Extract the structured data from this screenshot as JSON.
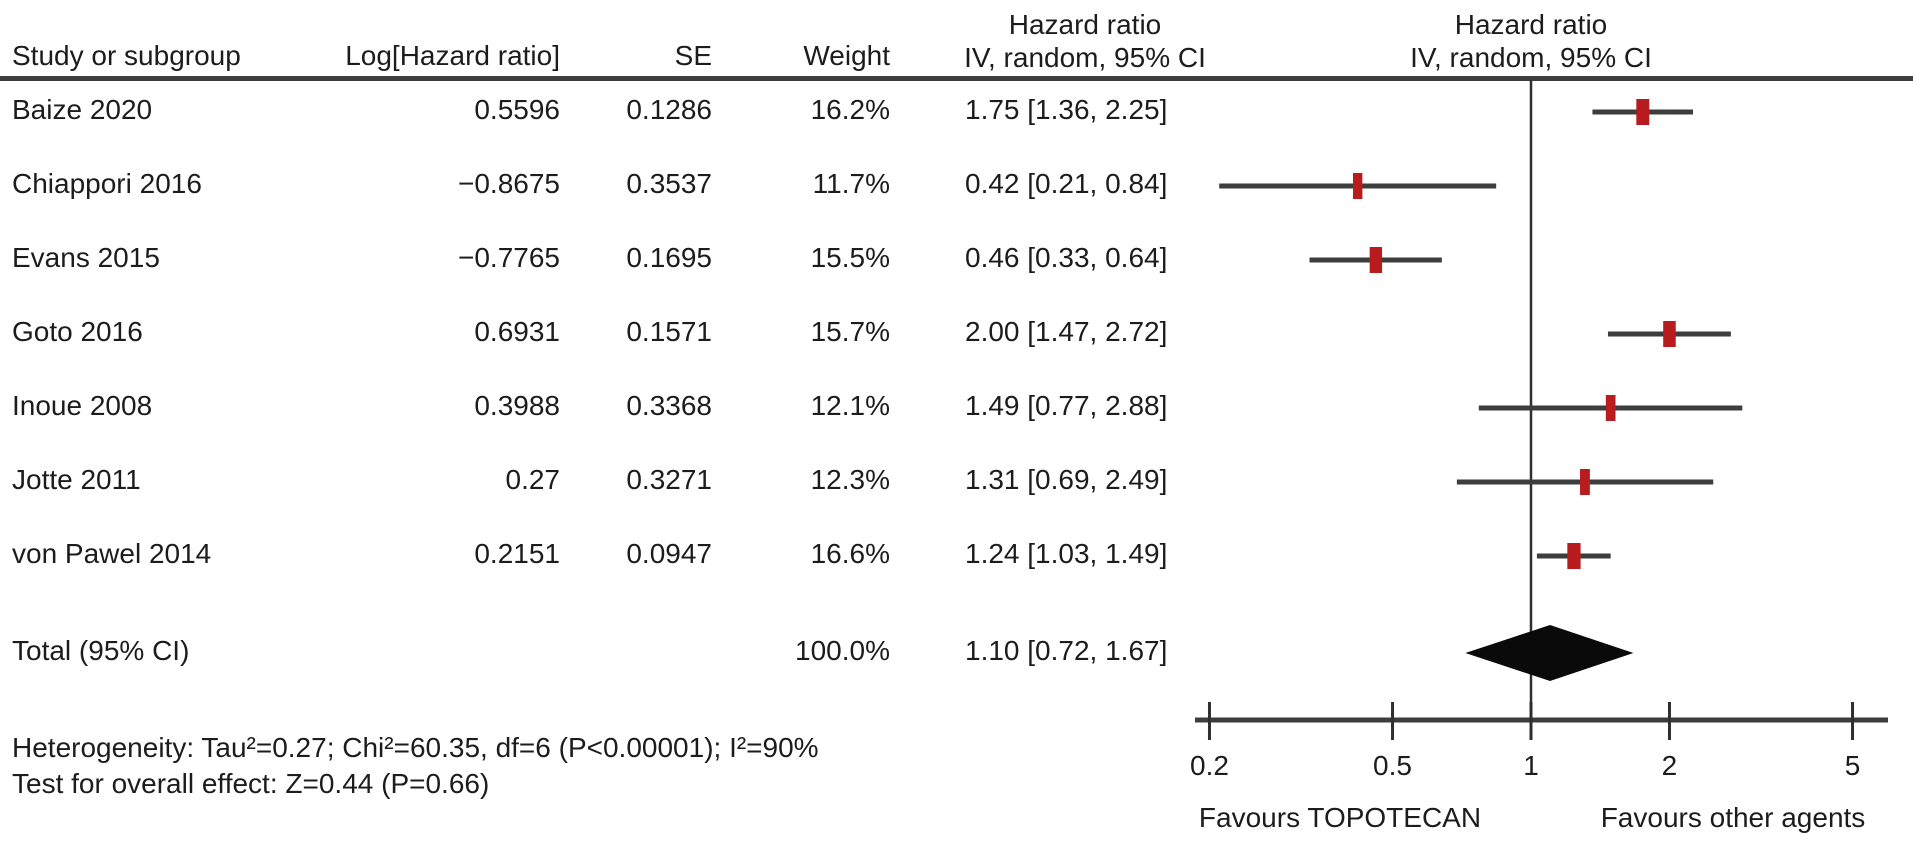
{
  "table": {
    "headers": {
      "study": "Study or subgroup",
      "log_hr": "Log[Hazard ratio]",
      "se": "SE",
      "weight": "Weight",
      "hr_col_line1": "Hazard ratio",
      "hr_col_line2": "IV, random, 95% CI",
      "plot_col_line1": "Hazard ratio",
      "plot_col_line2": "IV, random, 95% CI"
    },
    "rows": [
      {
        "study": "Baize 2020",
        "log_hr": "0.5596",
        "se": "0.1286",
        "weight": "16.2%",
        "hr_ci": "1.75 [1.36, 2.25]"
      },
      {
        "study": "Chiappori 2016",
        "log_hr": "−0.8675",
        "se": "0.3537",
        "weight": "11.7%",
        "hr_ci": "0.42 [0.21, 0.84]"
      },
      {
        "study": "Evans 2015",
        "log_hr": "−0.7765",
        "se": "0.1695",
        "weight": "15.5%",
        "hr_ci": "0.46 [0.33, 0.64]"
      },
      {
        "study": "Goto 2016",
        "log_hr": "0.6931",
        "se": "0.1571",
        "weight": "15.7%",
        "hr_ci": "2.00 [1.47, 2.72]"
      },
      {
        "study": "Inoue 2008",
        "log_hr": "0.3988",
        "se": "0.3368",
        "weight": "12.1%",
        "hr_ci": "1.49 [0.77, 2.88]"
      },
      {
        "study": "Jotte 2011",
        "log_hr": "0.27",
        "se": "0.3271",
        "weight": "12.3%",
        "hr_ci": "1.31 [0.69, 2.49]"
      },
      {
        "study": "von Pawel 2014",
        "log_hr": "0.2151",
        "se": "0.0947",
        "weight": "16.6%",
        "hr_ci": "1.24 [1.03, 1.49]"
      }
    ],
    "total": {
      "label": "Total (95% CI)",
      "weight": "100.0%",
      "hr_ci": "1.10 [0.72, 1.67]"
    }
  },
  "footer": {
    "heterogeneity": "Heterogeneity: Tau²=0.27; Chi²=60.35, df=6 (P<0.00001); I²=90%",
    "overall_effect": "Test for overall effect: Z=0.44 (P=0.66)"
  },
  "chart_data": {
    "type": "forest",
    "scale": "log10",
    "axis_ticks": [
      "0.2",
      "0.5",
      "1",
      "2",
      "5"
    ],
    "axis_range": [
      0.2,
      5
    ],
    "no_effect_line": 1,
    "favours_left": "Favours TOPOTECAN",
    "favours_right": "Favours other agents",
    "effect_label": "Hazard ratio",
    "model": "IV, random, 95% CI",
    "studies": [
      {
        "name": "Baize 2020",
        "hr": 1.75,
        "low": 1.36,
        "high": 2.25,
        "weight": 16.2
      },
      {
        "name": "Chiappori 2016",
        "hr": 0.42,
        "low": 0.21,
        "high": 0.84,
        "weight": 11.7
      },
      {
        "name": "Evans 2015",
        "hr": 0.46,
        "low": 0.33,
        "high": 0.64,
        "weight": 15.5
      },
      {
        "name": "Goto 2016",
        "hr": 2.0,
        "low": 1.47,
        "high": 2.72,
        "weight": 15.7
      },
      {
        "name": "Inoue 2008",
        "hr": 1.49,
        "low": 0.77,
        "high": 2.88,
        "weight": 12.1
      },
      {
        "name": "Jotte 2011",
        "hr": 1.31,
        "low": 0.69,
        "high": 2.49,
        "weight": 12.3
      },
      {
        "name": "von Pawel 2014",
        "hr": 1.24,
        "low": 1.03,
        "high": 1.49,
        "weight": 16.6
      }
    ],
    "total": {
      "hr": 1.1,
      "low": 0.72,
      "high": 1.67,
      "weight": 100.0
    }
  },
  "colors": {
    "marker": "#b91c1f",
    "ci_line": "#3d3d3d",
    "axis": "#3d3d3d",
    "no_effect": "#2f2f2f",
    "diamond": "#0a0a0a",
    "text": "#1c1c1c",
    "rule": "#3f3f3f"
  }
}
